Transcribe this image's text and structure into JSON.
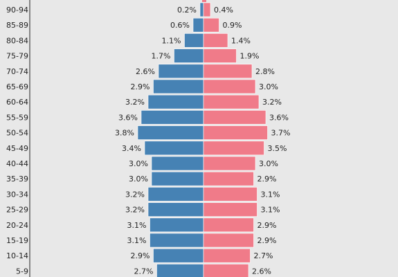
{
  "chart_data": {
    "type": "bar",
    "orientation": "horizontal",
    "layout": "population-pyramid",
    "categories": [
      "90-94",
      "85-89",
      "80-84",
      "75-79",
      "70-74",
      "65-69",
      "60-64",
      "55-59",
      "50-54",
      "45-49",
      "40-44",
      "35-39",
      "30-34",
      "25-29",
      "20-24",
      "15-19",
      "10-14",
      "5-9"
    ],
    "series": [
      {
        "side": "left",
        "color": "#4682b4",
        "values": [
          0.2,
          0.6,
          1.1,
          1.7,
          2.6,
          2.9,
          3.2,
          3.6,
          3.8,
          3.4,
          3.0,
          3.0,
          3.2,
          3.2,
          3.1,
          3.1,
          2.9,
          2.7
        ],
        "labels": [
          "0.2%",
          "0.6%",
          "1.1%",
          "1.7%",
          "2.6%",
          "2.9%",
          "3.2%",
          "3.6%",
          "3.8%",
          "3.4%",
          "3.0%",
          "3.0%",
          "3.2%",
          "3.2%",
          "3.1%",
          "3.1%",
          "2.9%",
          "2.7%"
        ]
      },
      {
        "side": "right",
        "color": "#f07b89",
        "values": [
          0.4,
          0.9,
          1.4,
          1.9,
          2.8,
          3.0,
          3.2,
          3.6,
          3.7,
          3.5,
          3.0,
          2.9,
          3.1,
          3.1,
          2.9,
          2.9,
          2.7,
          2.6
        ],
        "labels": [
          "0.4%",
          "0.9%",
          "1.4%",
          "1.9%",
          "2.8%",
          "3.0%",
          "3.2%",
          "3.6%",
          "3.7%",
          "3.5%",
          "3.0%",
          "2.9%",
          "3.1%",
          "3.1%",
          "2.9%",
          "2.9%",
          "2.7%",
          "2.6%"
        ]
      }
    ],
    "value_unit": "%",
    "background": "#e8e8e8",
    "axis_color": "#222222",
    "grid": false,
    "legend": "none"
  }
}
